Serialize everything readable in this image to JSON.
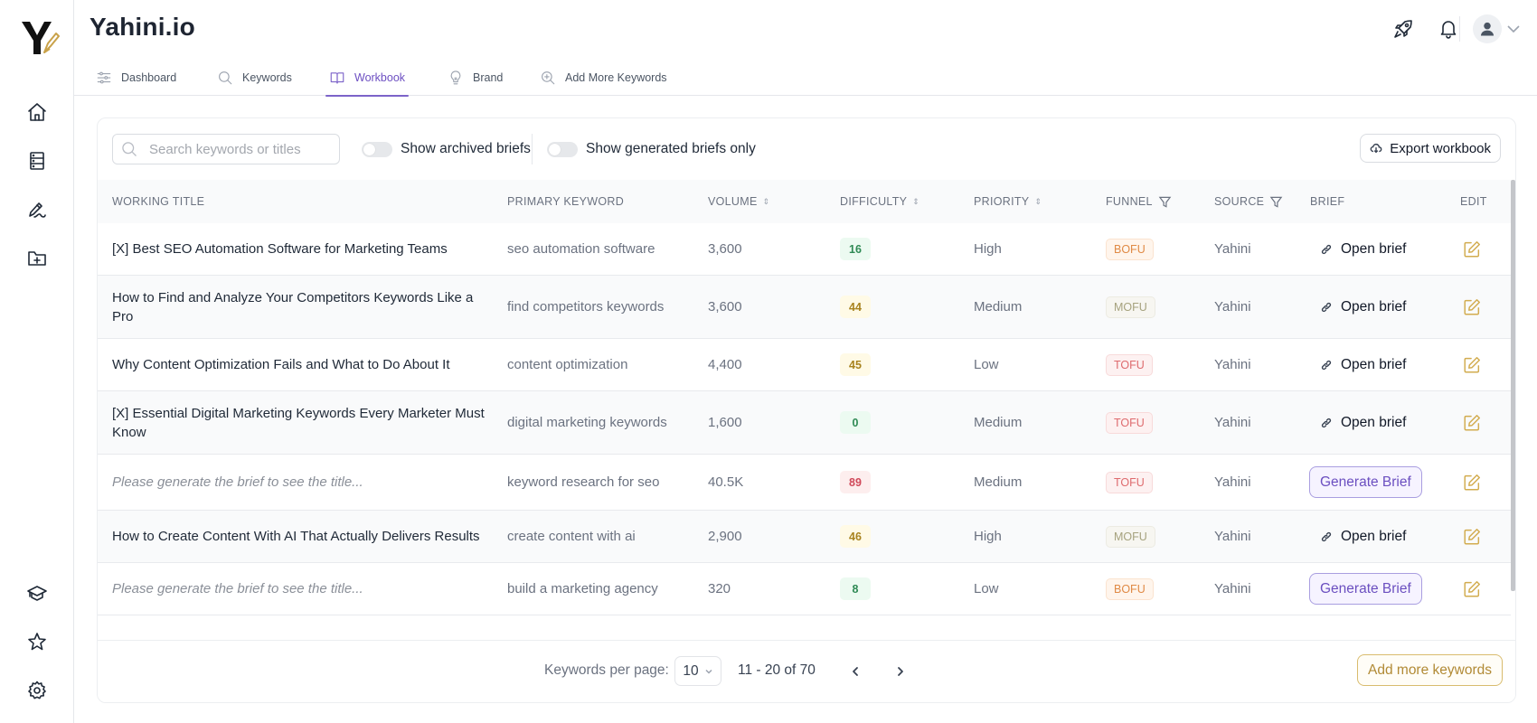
{
  "app": {
    "title": "Yahini.io",
    "logo_icon": "yahini-logo-pencil-icon"
  },
  "sidebar": {
    "top_items": [
      {
        "icon": "home-icon"
      },
      {
        "icon": "server-stack-icon"
      },
      {
        "icon": "signature-pen-icon"
      },
      {
        "icon": "folder-plus-icon"
      }
    ],
    "bottom_items": [
      {
        "icon": "graduation-cap-icon"
      },
      {
        "icon": "star-icon"
      },
      {
        "icon": "gear-icon"
      }
    ]
  },
  "header": {
    "icons": [
      "rocket-icon",
      "bell-icon",
      "avatar-user-icon",
      "chevron-down-icon"
    ]
  },
  "tabs": [
    {
      "label": "Dashboard",
      "icon": "sliders-icon",
      "active": false
    },
    {
      "label": "Keywords",
      "icon": "search-icon",
      "active": false
    },
    {
      "label": "Workbook",
      "icon": "book-open-icon",
      "active": true
    },
    {
      "label": "Brand",
      "icon": "lightbulb-icon",
      "active": false
    },
    {
      "label": "Add More Keywords",
      "icon": "zoom-plus-icon",
      "active": false
    }
  ],
  "toolbar": {
    "search_placeholder": "Search keywords or titles",
    "search_value": "",
    "toggle_archived_label": "Show archived briefs",
    "toggle_archived_on": false,
    "toggle_generated_label": "Show generated briefs only",
    "toggle_generated_on": false,
    "export_label": "Export workbook"
  },
  "table": {
    "columns": [
      {
        "label": "WORKING TITLE"
      },
      {
        "label": "PRIMARY KEYWORD"
      },
      {
        "label": "VOLUME",
        "sortable": true
      },
      {
        "label": "DIFFICULTY",
        "sortable": true
      },
      {
        "label": "PRIORITY",
        "sortable": true
      },
      {
        "label": "FUNNEL",
        "filterable": true
      },
      {
        "label": "SOURCE",
        "filterable": true
      },
      {
        "label": "BRIEF"
      },
      {
        "label": "EDIT"
      }
    ],
    "rows": [
      {
        "title": "[X] Best SEO Automation Software for Marketing Teams",
        "title_placeholder": false,
        "keyword": "seo automation software",
        "volume": "3,600",
        "difficulty": "16",
        "difficulty_level": "easy",
        "priority": "High",
        "funnel": "BOFU",
        "source": "Yahini",
        "brief_action": "Open brief",
        "brief_type": "open"
      },
      {
        "title": "How to Find and Analyze Your Competitors Keywords Like a Pro",
        "title_placeholder": false,
        "keyword": "find competitors keywords",
        "volume": "3,600",
        "difficulty": "44",
        "difficulty_level": "medium",
        "priority": "Medium",
        "funnel": "MOFU",
        "source": "Yahini",
        "brief_action": "Open brief",
        "brief_type": "open"
      },
      {
        "title": "Why Content Optimization Fails and What to Do About It",
        "title_placeholder": false,
        "keyword": "content optimization",
        "volume": "4,400",
        "difficulty": "45",
        "difficulty_level": "medium",
        "priority": "Low",
        "funnel": "TOFU",
        "source": "Yahini",
        "brief_action": "Open brief",
        "brief_type": "open"
      },
      {
        "title": "[X] Essential Digital Marketing Keywords Every Marketer Must Know",
        "title_placeholder": false,
        "keyword": "digital marketing keywords",
        "volume": "1,600",
        "difficulty": "0",
        "difficulty_level": "easy",
        "priority": "Medium",
        "funnel": "TOFU",
        "source": "Yahini",
        "brief_action": "Open brief",
        "brief_type": "open"
      },
      {
        "title": "Please generate the brief to see the title...",
        "title_placeholder": true,
        "keyword": "keyword research for seo",
        "volume": "40.5K",
        "difficulty": "89",
        "difficulty_level": "hard",
        "priority": "Medium",
        "funnel": "TOFU",
        "source": "Yahini",
        "brief_action": "Generate Brief",
        "brief_type": "generate"
      },
      {
        "title": "How to Create Content With AI That Actually Delivers Results",
        "title_placeholder": false,
        "keyword": "create content with ai",
        "volume": "2,900",
        "difficulty": "46",
        "difficulty_level": "medium",
        "priority": "High",
        "funnel": "MOFU",
        "source": "Yahini",
        "brief_action": "Open brief",
        "brief_type": "open"
      },
      {
        "title": "Please generate the brief to see the title...",
        "title_placeholder": true,
        "keyword": "build a marketing agency",
        "volume": "320",
        "difficulty": "8",
        "difficulty_level": "easy",
        "priority": "Low",
        "funnel": "BOFU",
        "source": "Yahini",
        "brief_action": "Generate Brief",
        "brief_type": "generate"
      }
    ]
  },
  "footer": {
    "per_page_label": "Keywords per page:",
    "per_page_value": "10",
    "range_text": "11 - 20 of 70",
    "add_more_label": "Add more keywords"
  },
  "colors": {
    "accent_purple": "#7c63c9",
    "accent_gold": "#d2ac4f",
    "difficulty_easy_bg": "#ecfaf1",
    "difficulty_easy_fg": "#2f8a55",
    "difficulty_medium_bg": "#fffae6",
    "difficulty_medium_fg": "#a8831f",
    "difficulty_hard_bg": "#fdeeee",
    "difficulty_hard_fg": "#d0495a",
    "bofu_bg": "#fff5ec",
    "bofu_fg": "#e08a45",
    "bofu_border": "#fbe3cf",
    "mofu_bg": "#f7f6f1",
    "mofu_fg": "#a6a27e",
    "mofu_border": "#ecebe2",
    "tofu_bg": "#fdf1f1",
    "tofu_fg": "#de6b6e",
    "tofu_border": "#f8dada"
  }
}
